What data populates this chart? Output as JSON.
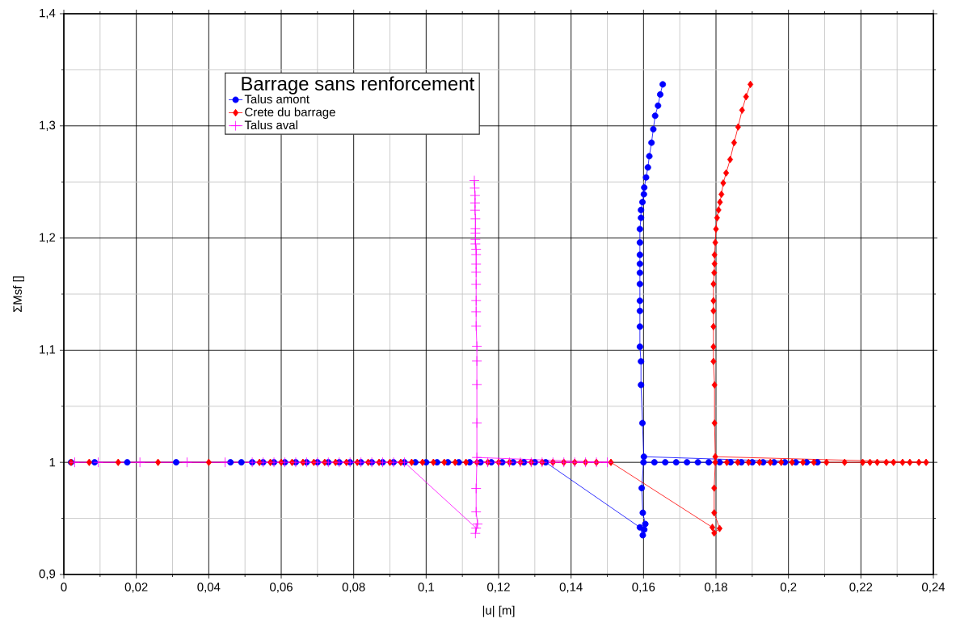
{
  "chart_data": {
    "type": "line",
    "xlabel": "|u| [m]",
    "ylabel": "ΣMsf []",
    "legend_title": "Barrage sans renforcement",
    "xlim": [
      0,
      0.24
    ],
    "ylim": [
      0.9,
      1.4
    ],
    "xticks": [
      0,
      {
        "value": 0.01,
        "label": null
      },
      {
        "value": 0.02,
        "label": "0,02"
      },
      {
        "value": 0.03,
        "label": null
      },
      {
        "value": 0.04,
        "label": "0,04"
      },
      {
        "value": 0.05,
        "label": null
      },
      {
        "value": 0.06,
        "label": "0,06"
      },
      {
        "value": 0.07,
        "label": null
      },
      {
        "value": 0.08,
        "label": "0,08"
      },
      {
        "value": 0.09,
        "label": null
      },
      {
        "value": 0.1,
        "label": "0,1"
      },
      {
        "value": 0.11,
        "label": null
      },
      {
        "value": 0.12,
        "label": "0,12"
      },
      {
        "value": 0.13,
        "label": null
      },
      {
        "value": 0.14,
        "label": "0,14"
      },
      {
        "value": 0.15,
        "label": null
      },
      {
        "value": 0.16,
        "label": "0,16"
      },
      {
        "value": 0.17,
        "label": null
      },
      {
        "value": 0.18,
        "label": "0,18"
      },
      {
        "value": 0.19,
        "label": null
      },
      {
        "value": 0.2,
        "label": "0,2"
      },
      {
        "value": 0.21,
        "label": null
      },
      {
        "value": 0.22,
        "label": "0,22"
      },
      {
        "value": 0.23,
        "label": null
      },
      {
        "value": 0.24,
        "label": "0,24"
      }
    ],
    "yticks": [
      {
        "value": 0.9,
        "label": "0,9"
      },
      {
        "value": 0.95,
        "label": null
      },
      1,
      {
        "value": 1.05,
        "label": null
      },
      {
        "value": 1.1,
        "label": "1,1"
      },
      {
        "value": 1.15,
        "label": null
      },
      {
        "value": 1.2,
        "label": "1,2"
      },
      {
        "value": 1.25,
        "label": null
      },
      {
        "value": 1.3,
        "label": "1,3"
      },
      {
        "value": 1.35,
        "label": null
      },
      {
        "value": 1.4,
        "label": "1,4"
      }
    ],
    "grid": true,
    "legend": "top left",
    "line_style": "solid",
    "series": [
      {
        "name": "Talus amont",
        "color": "#0000ff",
        "marker": "circle",
        "x": [
          0.002,
          0.0085,
          0.0175,
          0.031,
          0.046,
          0.049,
          0.052,
          0.055,
          0.058,
          0.061,
          0.064,
          0.067,
          0.07,
          0.073,
          0.076,
          0.079,
          0.082,
          0.085,
          0.088,
          0.091,
          0.094,
          0.097,
          0.1,
          0.103,
          0.106,
          0.109,
          0.112,
          0.115,
          0.118,
          0.121,
          0.124,
          0.127,
          0.13,
          0.133,
          0.159,
          0.1598,
          0.1602,
          0.1605,
          0.1598,
          0.1595,
          0.16,
          0.163,
          0.166,
          0.169,
          0.172,
          0.175,
          0.178,
          0.181,
          0.184,
          0.187,
          0.19,
          0.193,
          0.196,
          0.199,
          0.202,
          0.205,
          0.208,
          0.1601,
          0.1597,
          0.1593,
          0.1593,
          0.159,
          0.159,
          0.159,
          0.159,
          0.159,
          0.159,
          0.159,
          0.159,
          0.159,
          0.159,
          0.1593,
          0.1593,
          0.1597,
          0.1601,
          0.1602,
          0.1607,
          0.1612,
          0.1616,
          0.1622,
          0.1627,
          0.1632,
          0.164,
          0.1646,
          0.1653
        ],
        "values": [
          1,
          1,
          1,
          1,
          1,
          1,
          1,
          1,
          1,
          1,
          1,
          1,
          1,
          1,
          1,
          1,
          1,
          1,
          1,
          1,
          1,
          1,
          1,
          1,
          1,
          1,
          1,
          1,
          1,
          1,
          1,
          1,
          1,
          1,
          0.942,
          0.935,
          0.94,
          0.945,
          0.955,
          0.977,
          1.0,
          1,
          1,
          1,
          1,
          1,
          1,
          1,
          1,
          1,
          1,
          1,
          1,
          1,
          1,
          1,
          1,
          1.005,
          1.035,
          1.069,
          1.09,
          1.103,
          1.121,
          1.135,
          1.144,
          1.159,
          1.169,
          1.177,
          1.185,
          1.196,
          1.208,
          1.218,
          1.225,
          1.232,
          1.239,
          1.245,
          1.254,
          1.263,
          1.273,
          1.285,
          1.297,
          1.309,
          1.318,
          1.328,
          1.337
        ]
      },
      {
        "name": "Crete du barrage",
        "color": "#ff0000",
        "marker": "diamond",
        "x": [
          0.002,
          0.007,
          0.015,
          0.026,
          0.04,
          0.054,
          0.057,
          0.06,
          0.063,
          0.066,
          0.069,
          0.072,
          0.075,
          0.078,
          0.081,
          0.084,
          0.087,
          0.09,
          0.093,
          0.096,
          0.099,
          0.102,
          0.105,
          0.108,
          0.111,
          0.114,
          0.117,
          0.12,
          0.123,
          0.126,
          0.129,
          0.132,
          0.135,
          0.138,
          0.141,
          0.144,
          0.147,
          0.151,
          0.179,
          0.1795,
          0.181,
          0.1795,
          0.1795,
          0.1798,
          0.183,
          0.186,
          0.189,
          0.192,
          0.195,
          0.198,
          0.201,
          0.204,
          0.207,
          0.2105,
          0.2155,
          0.2205,
          0.2225,
          0.2245,
          0.227,
          0.229,
          0.2315,
          0.2335,
          0.236,
          0.238,
          0.1798,
          0.1796,
          0.1796,
          0.1793,
          0.1793,
          0.1793,
          0.1793,
          0.1793,
          0.1793,
          0.1795,
          0.1796,
          0.1796,
          0.1798,
          0.18,
          0.1803,
          0.1807,
          0.1811,
          0.1815,
          0.182,
          0.1828,
          0.1839,
          0.185,
          0.1861,
          0.1872,
          0.1883,
          0.1895
        ],
        "values": [
          1,
          1,
          1,
          1,
          1,
          1,
          1,
          1,
          1,
          1,
          1,
          1,
          1,
          1,
          1,
          1,
          1,
          1,
          1,
          1,
          1,
          1,
          1,
          1,
          1,
          1,
          1,
          1,
          1,
          1,
          1,
          1,
          1,
          1,
          1,
          1,
          1,
          1,
          0.942,
          0.937,
          0.941,
          0.955,
          0.977,
          1.0,
          1,
          1,
          1,
          1,
          1,
          1,
          1,
          1,
          1,
          1,
          1,
          1,
          1,
          1,
          1,
          1,
          1,
          1,
          1,
          1,
          1.005,
          1.035,
          1.069,
          1.09,
          1.103,
          1.121,
          1.135,
          1.144,
          1.159,
          1.169,
          1.177,
          1.185,
          1.196,
          1.208,
          1.218,
          1.225,
          1.232,
          1.239,
          1.249,
          1.258,
          1.27,
          1.285,
          1.299,
          1.314,
          1.326,
          1.337
        ]
      },
      {
        "name": "Talus aval",
        "color": "#ff00ff",
        "marker": "cross",
        "x": [
          0.003,
          0.0095,
          0.021,
          0.034,
          0.0445,
          0.052,
          0.055,
          0.058,
          0.061,
          0.064,
          0.067,
          0.07,
          0.073,
          0.076,
          0.079,
          0.082,
          0.085,
          0.088,
          0.091,
          0.094,
          0.1138,
          0.1136,
          0.1142,
          0.1138,
          0.1138,
          0.114,
          0.117,
          0.12,
          0.123,
          0.126,
          0.129,
          0.132,
          0.135,
          0.138,
          0.141,
          0.144,
          0.147,
          0.15,
          0.114,
          0.114,
          0.114,
          0.114,
          0.114,
          0.1138,
          0.1138,
          0.1138,
          0.1138,
          0.1138,
          0.1138,
          0.1138,
          0.1138,
          0.1136,
          0.1136,
          0.1136,
          0.1136,
          0.1136,
          0.1135,
          0.1135,
          0.1135,
          0.1134,
          0.1133
        ],
        "values": [
          1,
          1,
          1,
          1,
          1,
          1,
          1,
          1,
          1,
          1,
          1,
          1,
          1,
          1,
          1,
          1,
          1,
          1,
          1,
          1,
          0.9414,
          0.9366,
          0.945,
          0.9558,
          0.9767,
          1.0,
          1,
          1,
          1,
          1,
          1,
          1,
          1,
          1,
          1,
          1,
          1,
          1,
          1.0043,
          1.0351,
          1.0694,
          1.0903,
          1.1035,
          1.1215,
          1.1342,
          1.1443,
          1.1587,
          1.1695,
          1.1767,
          1.1852,
          1.19,
          1.1947,
          1.1988,
          1.2044,
          1.2084,
          1.2171,
          1.2248,
          1.2313,
          1.238,
          1.2445,
          1.2512
        ]
      }
    ]
  }
}
